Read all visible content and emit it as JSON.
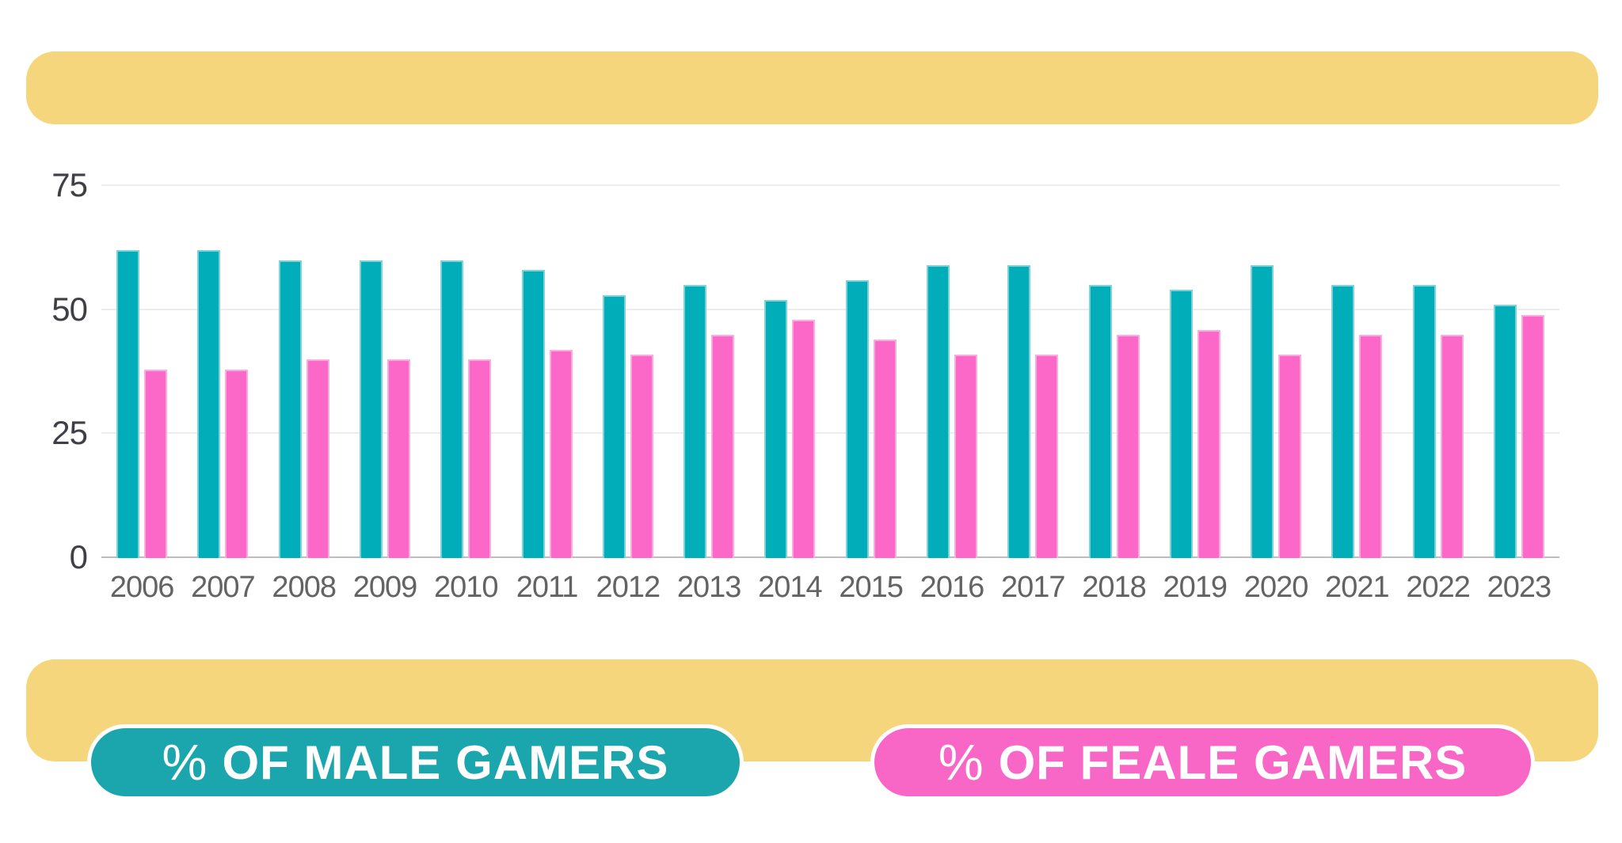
{
  "chart_data": {
    "type": "bar",
    "title": "",
    "xlabel": "",
    "ylabel": "",
    "categories": [
      "2006",
      "2007",
      "2008",
      "2009",
      "2010",
      "2011",
      "2012",
      "2013",
      "2014",
      "2015",
      "2016",
      "2017",
      "2018",
      "2019",
      "2020",
      "2021",
      "2022",
      "2023"
    ],
    "series": [
      {
        "name": "% OF MALE GAMERS",
        "color": "#00ADB9",
        "edge_color": "#7BD2D8",
        "values": [
          62,
          62,
          60,
          60,
          60,
          58,
          53,
          55,
          52,
          56,
          59,
          59,
          55,
          54,
          59,
          55,
          55,
          51
        ]
      },
      {
        "name": "% OF FEALE GAMERS",
        "color": "#FB68C7",
        "edge_color": "#FDAADF",
        "values": [
          38,
          38,
          40,
          40,
          40,
          42,
          41,
          45,
          48,
          44,
          41,
          41,
          45,
          46,
          41,
          45,
          45,
          49
        ]
      }
    ],
    "yticks": [
      0,
      25,
      50,
      75
    ],
    "ylim": [
      0,
      84
    ],
    "grid": true,
    "legend_position": "bottom"
  },
  "axis": {
    "tick_color": "#3F3F47",
    "year_color": "#636363",
    "gridline_color": "#ECECEC",
    "baseline_color": "#BDBDBD"
  },
  "legend": {
    "male": {
      "label": "% OF MALE GAMERS",
      "color": "#1BA5AC"
    },
    "female": {
      "label": "% OF FEALE GAMERS",
      "color": "#F867C6"
    }
  },
  "decor": {
    "band_color": "#F5D67C",
    "background": "#FFFFFF"
  }
}
